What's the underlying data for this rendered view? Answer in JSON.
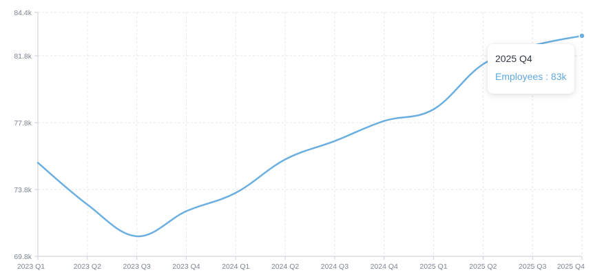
{
  "chart_data": {
    "type": "line",
    "categories": [
      "2023 Q1",
      "2023 Q2",
      "2023 Q3",
      "2023 Q4",
      "2024 Q1",
      "2024 Q2",
      "2024 Q3",
      "2024 Q4",
      "2025 Q1",
      "2025 Q2",
      "2025 Q3",
      "2025 Q4"
    ],
    "series": [
      {
        "name": "Employees",
        "values": [
          75.4,
          72.9,
          71.0,
          72.5,
          73.6,
          75.6,
          76.7,
          77.9,
          78.6,
          81.3,
          82.4,
          83.0
        ]
      }
    ],
    "y_ticks": [
      "69.8k",
      "73.8k",
      "77.8k",
      "81.8k",
      "84.4k"
    ],
    "y_tick_values": [
      69.8,
      73.8,
      77.8,
      81.8,
      84.4
    ],
    "ylim": [
      69.8,
      84.4
    ],
    "grid": true,
    "color": "#6aafe0",
    "tooltip": {
      "title": "2025 Q4",
      "value_text": "Employees : 83k"
    }
  }
}
